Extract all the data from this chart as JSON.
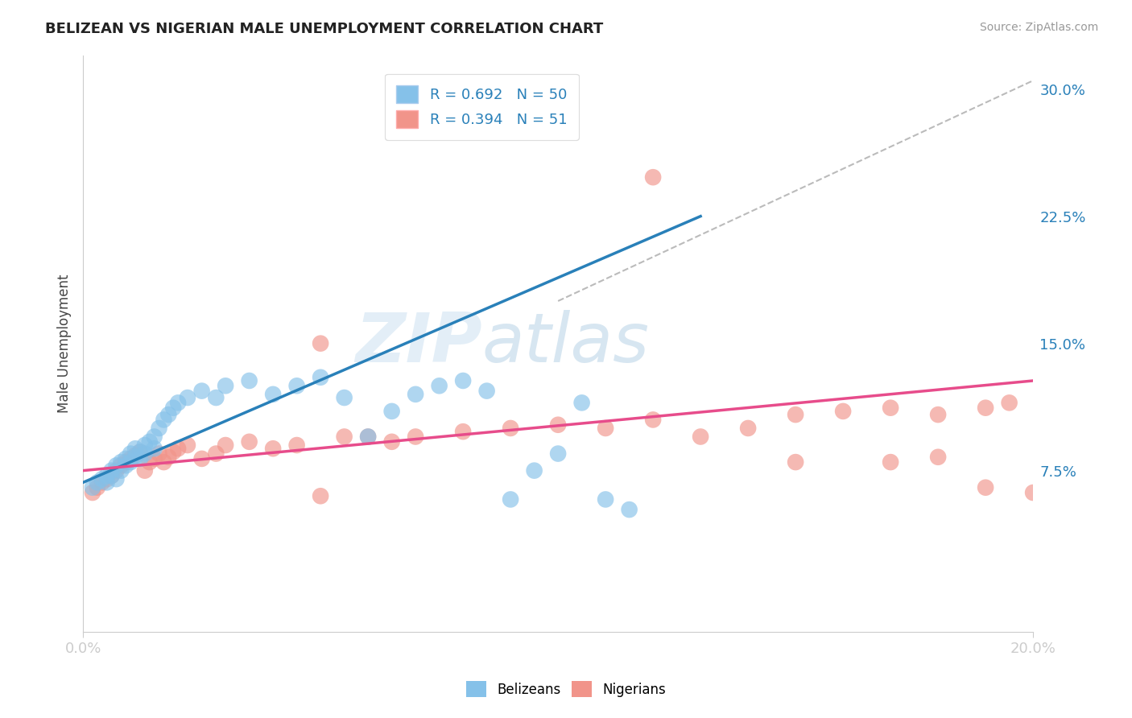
{
  "title": "BELIZEAN VS NIGERIAN MALE UNEMPLOYMENT CORRELATION CHART",
  "source_text": "Source: ZipAtlas.com",
  "ylabel": "Male Unemployment",
  "xlim": [
    0.0,
    0.2
  ],
  "ylim": [
    -0.02,
    0.32
  ],
  "yticks_right": [
    0.075,
    0.15,
    0.225,
    0.3
  ],
  "ytick_labels_right": [
    "7.5%",
    "15.0%",
    "22.5%",
    "30.0%"
  ],
  "xticks": [
    0.0,
    0.2
  ],
  "xtick_labels": [
    "0.0%",
    "20.0%"
  ],
  "blue_color": "#85c1e9",
  "pink_color": "#f1948a",
  "blue_line_color": "#2980b9",
  "pink_line_color": "#e74c8b",
  "dashed_line_color": "#aaaaaa",
  "legend_R_blue": "R = 0.692",
  "legend_N_blue": "N = 50",
  "legend_R_pink": "R = 0.394",
  "legend_N_pink": "N = 51",
  "watermark_zip": "ZIP",
  "watermark_atlas": "atlas",
  "blue_line_x": [
    0.0,
    0.13
  ],
  "blue_line_y": [
    0.068,
    0.225
  ],
  "pink_line_x": [
    0.0,
    0.2
  ],
  "pink_line_y": [
    0.075,
    0.128
  ],
  "diag_line_x": [
    0.1,
    0.2
  ],
  "diag_line_y": [
    0.175,
    0.305
  ],
  "grid_color": "#cccccc",
  "bg_color": "#ffffff",
  "blue_scatter_x": [
    0.002,
    0.003,
    0.004,
    0.005,
    0.005,
    0.006,
    0.006,
    0.007,
    0.007,
    0.008,
    0.008,
    0.009,
    0.009,
    0.01,
    0.01,
    0.011,
    0.011,
    0.012,
    0.012,
    0.013,
    0.013,
    0.014,
    0.015,
    0.015,
    0.016,
    0.017,
    0.018,
    0.019,
    0.02,
    0.022,
    0.025,
    0.028,
    0.03,
    0.035,
    0.04,
    0.045,
    0.05,
    0.055,
    0.06,
    0.065,
    0.07,
    0.075,
    0.08,
    0.085,
    0.09,
    0.095,
    0.1,
    0.105,
    0.11,
    0.115
  ],
  "blue_scatter_y": [
    0.065,
    0.068,
    0.07,
    0.072,
    0.068,
    0.072,
    0.075,
    0.078,
    0.07,
    0.08,
    0.075,
    0.082,
    0.078,
    0.085,
    0.08,
    0.088,
    0.083,
    0.086,
    0.082,
    0.09,
    0.085,
    0.092,
    0.095,
    0.088,
    0.1,
    0.105,
    0.108,
    0.112,
    0.115,
    0.118,
    0.122,
    0.118,
    0.125,
    0.128,
    0.12,
    0.125,
    0.13,
    0.118,
    0.095,
    0.11,
    0.12,
    0.125,
    0.128,
    0.122,
    0.058,
    0.075,
    0.085,
    0.115,
    0.058,
    0.052
  ],
  "pink_scatter_x": [
    0.002,
    0.003,
    0.004,
    0.005,
    0.006,
    0.007,
    0.008,
    0.009,
    0.01,
    0.011,
    0.012,
    0.013,
    0.014,
    0.015,
    0.016,
    0.017,
    0.018,
    0.019,
    0.02,
    0.022,
    0.025,
    0.028,
    0.03,
    0.035,
    0.04,
    0.045,
    0.05,
    0.055,
    0.06,
    0.065,
    0.07,
    0.08,
    0.09,
    0.1,
    0.11,
    0.12,
    0.13,
    0.14,
    0.15,
    0.16,
    0.17,
    0.18,
    0.19,
    0.195,
    0.2,
    0.12,
    0.15,
    0.17,
    0.18,
    0.19,
    0.05
  ],
  "pink_scatter_y": [
    0.062,
    0.065,
    0.068,
    0.07,
    0.072,
    0.075,
    0.078,
    0.08,
    0.082,
    0.084,
    0.086,
    0.075,
    0.08,
    0.082,
    0.085,
    0.08,
    0.083,
    0.086,
    0.088,
    0.09,
    0.082,
    0.085,
    0.09,
    0.092,
    0.088,
    0.09,
    0.06,
    0.095,
    0.095,
    0.092,
    0.095,
    0.098,
    0.1,
    0.102,
    0.1,
    0.105,
    0.095,
    0.1,
    0.108,
    0.11,
    0.112,
    0.108,
    0.112,
    0.115,
    0.062,
    0.248,
    0.08,
    0.08,
    0.083,
    0.065,
    0.15
  ]
}
